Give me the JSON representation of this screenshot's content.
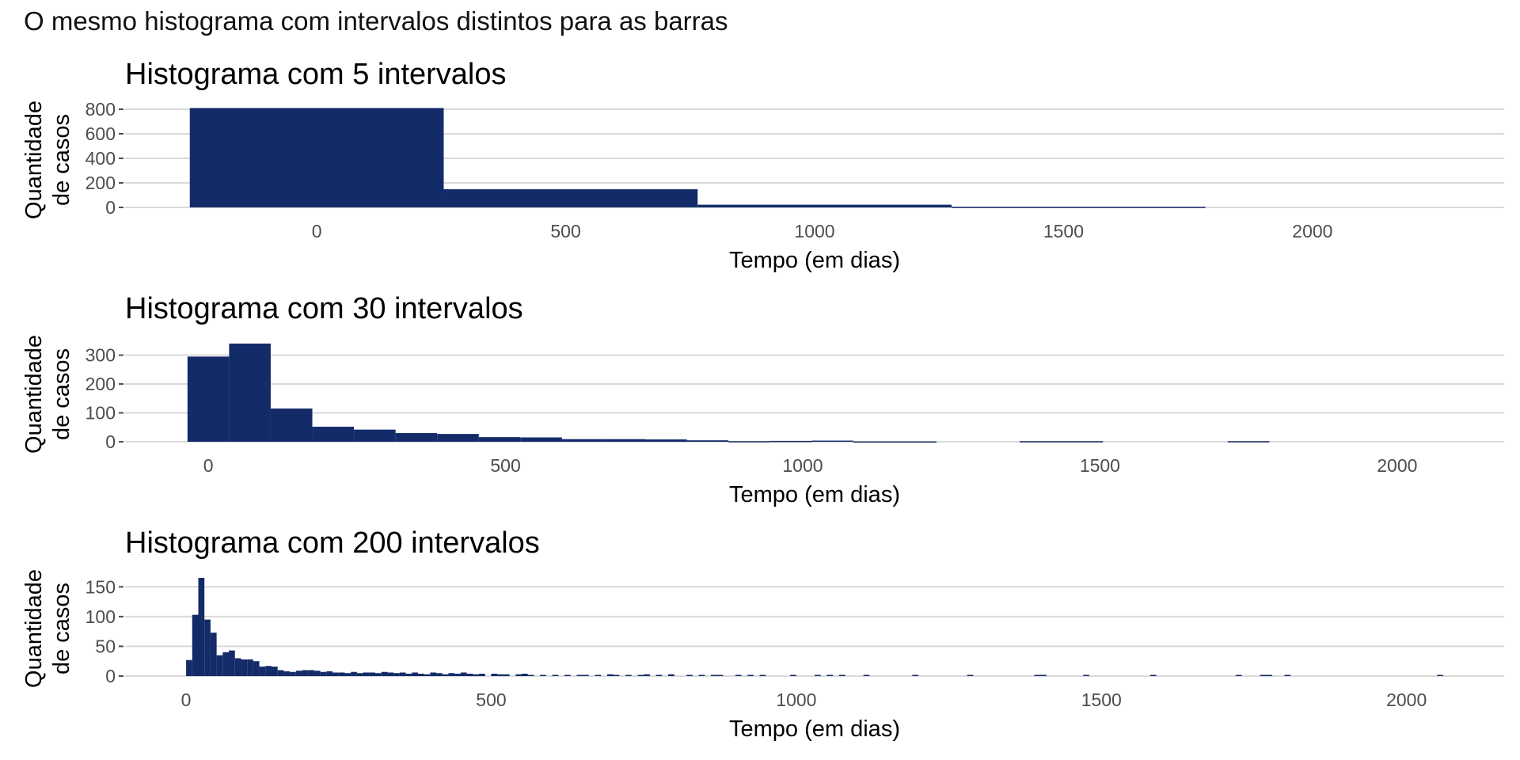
{
  "figure": {
    "title": "O mesmo histograma com intervalos distintos para as barras",
    "bar_color": "#132B68",
    "grid_color": "#D9D9D9",
    "tick_color": "#4D4D4D"
  },
  "chart_data": [
    {
      "type": "bar",
      "title": "Histograma com 5 intervalos",
      "xlabel": "Tempo (em dias)",
      "ylabel_lines": [
        "Quantidade",
        "de casos"
      ],
      "xlim": [
        -385,
        2385
      ],
      "ylim": [
        0,
        800
      ],
      "xticks": [
        0,
        500,
        1000,
        1500,
        2000
      ],
      "xtick_labels": [
        "0",
        "500",
        "1000",
        "1500",
        "2000"
      ],
      "yticks": [
        0,
        200,
        400,
        600,
        800
      ],
      "ytick_labels": [
        "0",
        "200",
        "400",
        "600",
        "800"
      ],
      "grid": true,
      "bins": [
        {
          "x0": -255,
          "x1": 255,
          "count": 810
        },
        {
          "x0": 255,
          "x1": 765,
          "count": 148
        },
        {
          "x0": 765,
          "x1": 1275,
          "count": 22
        },
        {
          "x0": 1275,
          "x1": 1785,
          "count": 5
        }
      ]
    },
    {
      "type": "bar",
      "title": "Histograma com 30 intervalos",
      "xlabel": "Tempo (em dias)",
      "ylabel_lines": [
        "Quantidade",
        "de casos"
      ],
      "xlim": [
        -140,
        2180
      ],
      "ylim": [
        0,
        340
      ],
      "xticks": [
        0,
        500,
        1000,
        1500,
        2000
      ],
      "xtick_labels": [
        "0",
        "500",
        "1000",
        "1500",
        "2000"
      ],
      "yticks": [
        0,
        100,
        200,
        300
      ],
      "ytick_labels": [
        "0",
        "100",
        "200",
        "300"
      ],
      "grid": true,
      "bins": [
        {
          "x0": -35,
          "x1": 35,
          "count": 295
        },
        {
          "x0": 35,
          "x1": 105,
          "count": 340
        },
        {
          "x0": 105,
          "x1": 175,
          "count": 115
        },
        {
          "x0": 175,
          "x1": 245,
          "count": 52
        },
        {
          "x0": 245,
          "x1": 315,
          "count": 42
        },
        {
          "x0": 315,
          "x1": 385,
          "count": 30
        },
        {
          "x0": 385,
          "x1": 455,
          "count": 27
        },
        {
          "x0": 455,
          "x1": 525,
          "count": 16
        },
        {
          "x0": 525,
          "x1": 595,
          "count": 15
        },
        {
          "x0": 595,
          "x1": 665,
          "count": 9
        },
        {
          "x0": 665,
          "x1": 735,
          "count": 9
        },
        {
          "x0": 735,
          "x1": 805,
          "count": 8
        },
        {
          "x0": 805,
          "x1": 875,
          "count": 5
        },
        {
          "x0": 875,
          "x1": 945,
          "count": 2
        },
        {
          "x0": 945,
          "x1": 1015,
          "count": 3
        },
        {
          "x0": 1015,
          "x1": 1085,
          "count": 4
        },
        {
          "x0": 1085,
          "x1": 1155,
          "count": 1
        },
        {
          "x0": 1155,
          "x1": 1225,
          "count": 1
        },
        {
          "x0": 1365,
          "x1": 1435,
          "count": 2
        },
        {
          "x0": 1435,
          "x1": 1505,
          "count": 2
        },
        {
          "x0": 1715,
          "x1": 1785,
          "count": 2
        }
      ]
    },
    {
      "type": "bar",
      "title": "Histograma com 200 intervalos",
      "xlabel": "Tempo (em dias)",
      "ylabel_lines": [
        "Quantidade",
        "de casos"
      ],
      "xlim": [
        -100,
        2160
      ],
      "ylim": [
        0,
        165
      ],
      "xticks": [
        0,
        500,
        1000,
        1500,
        2000
      ],
      "xtick_labels": [
        "0",
        "500",
        "1000",
        "1500",
        "2000"
      ],
      "yticks": [
        0,
        50,
        100,
        150
      ],
      "ytick_labels": [
        "0",
        "50",
        "100",
        "150"
      ],
      "grid": true,
      "bins": [
        {
          "x0": 0,
          "x1": 10,
          "count": 27
        },
        {
          "x0": 10,
          "x1": 20,
          "count": 103
        },
        {
          "x0": 20,
          "x1": 30,
          "count": 165
        },
        {
          "x0": 30,
          "x1": 40,
          "count": 95
        },
        {
          "x0": 40,
          "x1": 50,
          "count": 73
        },
        {
          "x0": 50,
          "x1": 60,
          "count": 35
        },
        {
          "x0": 60,
          "x1": 70,
          "count": 40
        },
        {
          "x0": 70,
          "x1": 80,
          "count": 43
        },
        {
          "x0": 80,
          "x1": 90,
          "count": 30
        },
        {
          "x0": 90,
          "x1": 100,
          "count": 28
        },
        {
          "x0": 100,
          "x1": 110,
          "count": 28
        },
        {
          "x0": 110,
          "x1": 120,
          "count": 25
        },
        {
          "x0": 120,
          "x1": 130,
          "count": 16
        },
        {
          "x0": 130,
          "x1": 140,
          "count": 17
        },
        {
          "x0": 140,
          "x1": 150,
          "count": 16
        },
        {
          "x0": 150,
          "x1": 160,
          "count": 10
        },
        {
          "x0": 160,
          "x1": 170,
          "count": 8
        },
        {
          "x0": 170,
          "x1": 180,
          "count": 7
        },
        {
          "x0": 180,
          "x1": 190,
          "count": 9
        },
        {
          "x0": 190,
          "x1": 200,
          "count": 10
        },
        {
          "x0": 200,
          "x1": 210,
          "count": 10
        },
        {
          "x0": 210,
          "x1": 220,
          "count": 9
        },
        {
          "x0": 220,
          "x1": 230,
          "count": 7
        },
        {
          "x0": 230,
          "x1": 240,
          "count": 8
        },
        {
          "x0": 240,
          "x1": 250,
          "count": 6
        },
        {
          "x0": 250,
          "x1": 260,
          "count": 6
        },
        {
          "x0": 260,
          "x1": 270,
          "count": 5
        },
        {
          "x0": 270,
          "x1": 280,
          "count": 7
        },
        {
          "x0": 280,
          "x1": 290,
          "count": 5
        },
        {
          "x0": 290,
          "x1": 300,
          "count": 6
        },
        {
          "x0": 300,
          "x1": 310,
          "count": 6
        },
        {
          "x0": 310,
          "x1": 320,
          "count": 5
        },
        {
          "x0": 320,
          "x1": 330,
          "count": 7
        },
        {
          "x0": 330,
          "x1": 340,
          "count": 6
        },
        {
          "x0": 340,
          "x1": 350,
          "count": 5
        },
        {
          "x0": 350,
          "x1": 360,
          "count": 6
        },
        {
          "x0": 360,
          "x1": 370,
          "count": 4
        },
        {
          "x0": 370,
          "x1": 380,
          "count": 6
        },
        {
          "x0": 380,
          "x1": 390,
          "count": 4
        },
        {
          "x0": 390,
          "x1": 400,
          "count": 3
        },
        {
          "x0": 400,
          "x1": 410,
          "count": 6
        },
        {
          "x0": 410,
          "x1": 420,
          "count": 5
        },
        {
          "x0": 420,
          "x1": 430,
          "count": 3
        },
        {
          "x0": 430,
          "x1": 440,
          "count": 5
        },
        {
          "x0": 440,
          "x1": 450,
          "count": 4
        },
        {
          "x0": 450,
          "x1": 460,
          "count": 6
        },
        {
          "x0": 460,
          "x1": 470,
          "count": 4
        },
        {
          "x0": 470,
          "x1": 480,
          "count": 3
        },
        {
          "x0": 480,
          "x1": 490,
          "count": 4
        },
        {
          "x0": 500,
          "x1": 510,
          "count": 4
        },
        {
          "x0": 510,
          "x1": 520,
          "count": 3
        },
        {
          "x0": 520,
          "x1": 530,
          "count": 3
        },
        {
          "x0": 540,
          "x1": 550,
          "count": 3
        },
        {
          "x0": 550,
          "x1": 560,
          "count": 4
        },
        {
          "x0": 560,
          "x1": 570,
          "count": 2
        },
        {
          "x0": 580,
          "x1": 590,
          "count": 2
        },
        {
          "x0": 600,
          "x1": 610,
          "count": 2
        },
        {
          "x0": 620,
          "x1": 630,
          "count": 2
        },
        {
          "x0": 640,
          "x1": 650,
          "count": 2
        },
        {
          "x0": 650,
          "x1": 660,
          "count": 2
        },
        {
          "x0": 670,
          "x1": 680,
          "count": 2
        },
        {
          "x0": 690,
          "x1": 700,
          "count": 3
        },
        {
          "x0": 700,
          "x1": 710,
          "count": 2
        },
        {
          "x0": 720,
          "x1": 730,
          "count": 2
        },
        {
          "x0": 740,
          "x1": 750,
          "count": 2
        },
        {
          "x0": 750,
          "x1": 760,
          "count": 3
        },
        {
          "x0": 770,
          "x1": 780,
          "count": 2
        },
        {
          "x0": 790,
          "x1": 800,
          "count": 3
        },
        {
          "x0": 820,
          "x1": 830,
          "count": 2
        },
        {
          "x0": 840,
          "x1": 850,
          "count": 2
        },
        {
          "x0": 860,
          "x1": 870,
          "count": 2
        },
        {
          "x0": 870,
          "x1": 880,
          "count": 2
        },
        {
          "x0": 900,
          "x1": 910,
          "count": 2
        },
        {
          "x0": 920,
          "x1": 930,
          "count": 2
        },
        {
          "x0": 940,
          "x1": 950,
          "count": 2
        },
        {
          "x0": 990,
          "x1": 1000,
          "count": 2
        },
        {
          "x0": 1030,
          "x1": 1040,
          "count": 2
        },
        {
          "x0": 1050,
          "x1": 1060,
          "count": 2
        },
        {
          "x0": 1070,
          "x1": 1080,
          "count": 2
        },
        {
          "x0": 1110,
          "x1": 1120,
          "count": 2
        },
        {
          "x0": 1190,
          "x1": 1200,
          "count": 2
        },
        {
          "x0": 1280,
          "x1": 1290,
          "count": 2
        },
        {
          "x0": 1390,
          "x1": 1410,
          "count": 2
        },
        {
          "x0": 1470,
          "x1": 1480,
          "count": 2
        },
        {
          "x0": 1580,
          "x1": 1590,
          "count": 2
        },
        {
          "x0": 1720,
          "x1": 1730,
          "count": 2
        },
        {
          "x0": 1760,
          "x1": 1780,
          "count": 2
        },
        {
          "x0": 1800,
          "x1": 1810,
          "count": 2
        },
        {
          "x0": 2050,
          "x1": 2060,
          "count": 2
        }
      ]
    }
  ]
}
